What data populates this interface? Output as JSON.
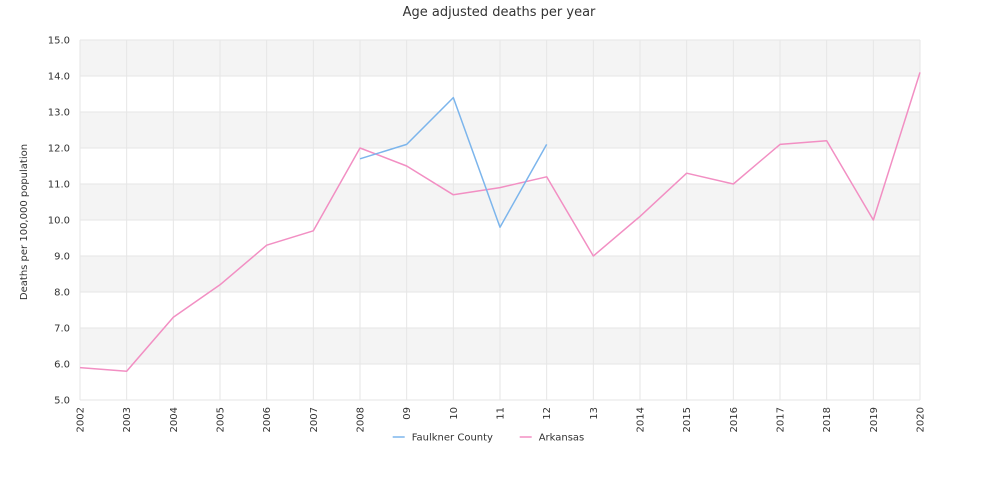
{
  "chart_data": {
    "type": "line",
    "title": "Age adjusted deaths per year",
    "xlabel": "",
    "ylabel": "Deaths per 100,000 population",
    "categories": [
      "2002",
      "2003",
      "2004",
      "2005",
      "2006",
      "2007",
      "2008",
      "09",
      "10",
      "11",
      "12",
      "13",
      "2014",
      "2015",
      "2016",
      "2017",
      "2018",
      "2019",
      "2020"
    ],
    "ylim": [
      5.0,
      15.0
    ],
    "yticks": [
      "5.0",
      "6.0",
      "7.0",
      "8.0",
      "9.0",
      "10.0",
      "11.0",
      "12.0",
      "13.0",
      "14.0",
      "15.0"
    ],
    "grid": true,
    "legend": "bottom",
    "series": [
      {
        "name": "Faulkner County",
        "color": "#7cb5ec",
        "values": [
          null,
          null,
          null,
          null,
          null,
          null,
          11.7,
          12.1,
          13.4,
          9.8,
          12.1,
          null,
          null,
          null,
          null,
          null,
          null,
          null,
          null
        ]
      },
      {
        "name": "Arkansas",
        "color": "#f28fc3",
        "values": [
          5.9,
          5.8,
          7.3,
          8.2,
          9.3,
          9.7,
          12.0,
          11.5,
          10.7,
          10.9,
          11.2,
          9.0,
          10.1,
          11.3,
          11.0,
          12.1,
          12.2,
          10.0,
          14.1
        ]
      }
    ],
    "band_color": "#f4f4f4",
    "gridline_color": "#e6e6e6"
  }
}
